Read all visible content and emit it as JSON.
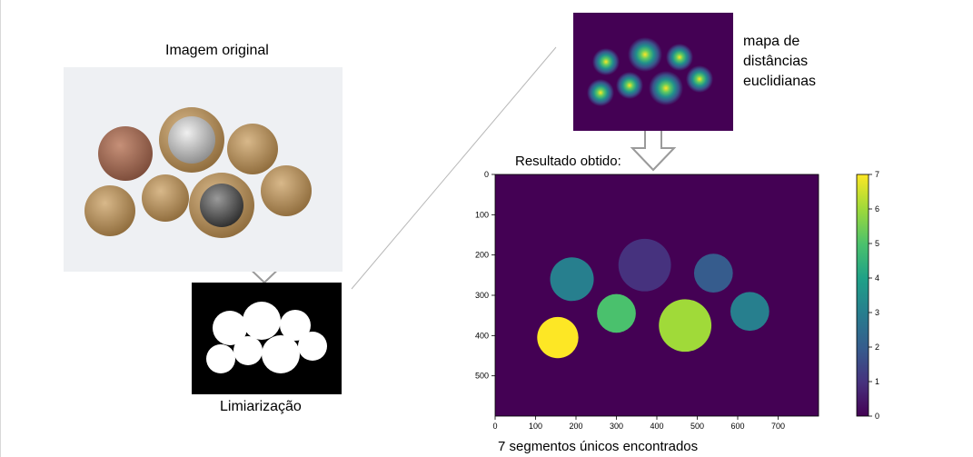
{
  "labels": {
    "original": "Imagem original",
    "limiarizacao": "Limiarização",
    "mapa_line1": "mapa de",
    "mapa_line2": "distâncias",
    "mapa_line3": "euclidianas",
    "resultado": "Resultado obtido:",
    "footer": "7 segmentos únicos encontrados"
  },
  "colors": {
    "background": "#ffffff",
    "photo_background": "#eef0f3",
    "viridis_dark": "#440154",
    "viridis_yellow": "#fde725",
    "arrow_stroke": "#9a9a9a"
  },
  "chart_data": {
    "type": "heatmap",
    "colormap": "viridis",
    "xlim": [
      0,
      800
    ],
    "ylim": [
      600,
      0
    ],
    "xticks": [
      0,
      100,
      200,
      300,
      400,
      500,
      600,
      700
    ],
    "yticks": [
      0,
      100,
      200,
      300,
      400,
      500
    ],
    "colorbar": {
      "range": [
        0,
        7
      ],
      "ticks": [
        0,
        1,
        2,
        3,
        4,
        5,
        6,
        7
      ]
    },
    "segments": [
      {
        "label": 1,
        "cx": 370,
        "cy": 225,
        "r": 65
      },
      {
        "label": 2,
        "cx": 540,
        "cy": 245,
        "r": 48
      },
      {
        "label": 3,
        "cx": 190,
        "cy": 260,
        "r": 54
      },
      {
        "label": 3,
        "cx": 630,
        "cy": 340,
        "r": 48
      },
      {
        "label": 5,
        "cx": 300,
        "cy": 345,
        "r": 48
      },
      {
        "label": 6,
        "cx": 470,
        "cy": 375,
        "r": 65
      },
      {
        "label": 7,
        "cx": 155,
        "cy": 405,
        "r": 51
      }
    ]
  }
}
